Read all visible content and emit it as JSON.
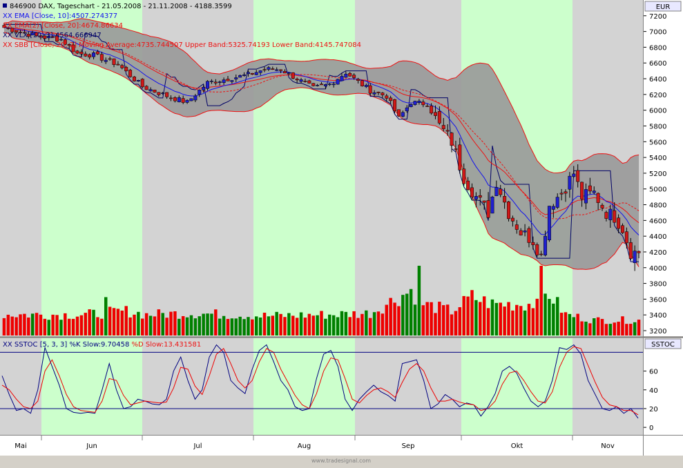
{
  "colors": {
    "background": "#d4d0c8",
    "band_gray": "#d3d3d3",
    "band_green": "#ccffcc",
    "bollinger_fill": "#999999",
    "up_candle": "#1f1fd0",
    "down_candle": "#d01818",
    "ema10": "#1111ee",
    "ema20": "#ee1111",
    "vlx": "#000066",
    "volume_up": "#008000",
    "volume_down": "#ee0000",
    "stoch_k": "#000080",
    "stoch_d": "#ee0000",
    "axis_label_box": "#e8e8ff"
  },
  "header": {
    "title": "846900 DAX, Tageschart - 21.05.2008 - 21.11.2008 - 4188.3599",
    "currency_label": "EUR"
  },
  "legend": {
    "ema10": "XX EMA [Close, 10]:4507.274377",
    "ema20": "XX EMA(2) [Close, 20]:4674.86634",
    "vlx": "XX VLX [10, 3]:4564.666947",
    "bollinger": "XX SBB [Close, 20, 2] Moving Average:4735.744507 Upper Band:5325.74193 Lower Band:4145.747084"
  },
  "stoch_panel": {
    "label": "SSTOC",
    "legend_prefix": "XX SSTOC [5, 3, 3]",
    "legend_k": " %K Slow:9.70458",
    "legend_d": " %D Slow:13.431581"
  },
  "watermark": "www.tradesignal.com",
  "chart_data": [
    {
      "type": "candlestick",
      "title": "846900 DAX, Tageschart - 21.05.2008 - 21.11.2008 - 4188.3599",
      "y_axis_label": "EUR",
      "ylim": [
        3130,
        7400
      ],
      "y_ticks": [
        3200,
        3400,
        3600,
        3800,
        4000,
        4200,
        4400,
        4600,
        4800,
        5000,
        5200,
        5400,
        5600,
        5800,
        6000,
        6200,
        6400,
        6600,
        6800,
        7000,
        7200
      ],
      "x_month_labels": [
        "Mai",
        "Jun",
        "Jul",
        "Aug",
        "Sep",
        "Okt",
        "Nov"
      ],
      "close_waypoints": [
        [
          0,
          7050
        ],
        [
          8,
          6940
        ],
        [
          14,
          6900
        ],
        [
          18,
          6720
        ],
        [
          22,
          6700
        ],
        [
          28,
          6580
        ],
        [
          34,
          6300
        ],
        [
          40,
          6180
        ],
        [
          45,
          6100
        ],
        [
          50,
          6350
        ],
        [
          55,
          6400
        ],
        [
          60,
          6450
        ],
        [
          64,
          6520
        ],
        [
          68,
          6520
        ],
        [
          72,
          6400
        ],
        [
          76,
          6280
        ],
        [
          80,
          6330
        ],
        [
          84,
          6480
        ],
        [
          87,
          6360
        ],
        [
          90,
          6250
        ],
        [
          94,
          6180
        ],
        [
          97,
          5900
        ],
        [
          100,
          6100
        ],
        [
          104,
          6080
        ],
        [
          107,
          5800
        ],
        [
          110,
          5600
        ],
        [
          113,
          5150
        ],
        [
          116,
          4900
        ],
        [
          119,
          4700
        ],
        [
          121,
          5100
        ],
        [
          124,
          4700
        ],
        [
          127,
          4450
        ],
        [
          130,
          4350
        ],
        [
          132,
          4150
        ],
        [
          134,
          4800
        ],
        [
          137,
          4950
        ],
        [
          140,
          5200
        ],
        [
          142,
          4900
        ],
        [
          145,
          4950
        ],
        [
          148,
          4700
        ],
        [
          150,
          4650
        ],
        [
          152,
          4500
        ],
        [
          154,
          4200
        ],
        [
          156,
          4188
        ]
      ],
      "legend": [
        "XX EMA [Close, 10]:4507.274377",
        "XX EMA(2) [Close, 20]:4674.86634",
        "XX VLX [10, 3]:4564.666947",
        "XX SBB [Close, 20, 2] Moving Average:4735.744507 Upper Band:5325.74193 Lower Band:4145.747084"
      ],
      "last_values": {
        "ema10": 4507.274377,
        "ema20": 4674.86634,
        "vlx": 4564.666947,
        "bb_mid": 4735.744507,
        "bb_upper": 5325.74193,
        "bb_lower": 4145.747084
      },
      "volume_waypoints": [
        [
          0,
          0.3
        ],
        [
          20,
          0.3
        ],
        [
          30,
          0.35
        ],
        [
          35,
          0.3
        ],
        [
          45,
          0.32
        ],
        [
          55,
          0.3
        ],
        [
          65,
          0.28
        ],
        [
          80,
          0.3
        ],
        [
          90,
          0.32
        ],
        [
          97,
          0.55
        ],
        [
          100,
          0.65
        ],
        [
          103,
          0.45
        ],
        [
          110,
          0.35
        ],
        [
          115,
          0.55
        ],
        [
          120,
          0.45
        ],
        [
          130,
          0.45
        ],
        [
          132,
          0.95
        ],
        [
          134,
          0.6
        ],
        [
          138,
          0.3
        ],
        [
          145,
          0.22
        ],
        [
          156,
          0.22
        ]
      ],
      "volume_spikes": [
        [
          25,
          0.55
        ],
        [
          102,
          1.0
        ],
        [
          132,
          1.0
        ],
        [
          133,
          0.6
        ]
      ]
    },
    {
      "type": "line",
      "title": "XX SSTOC [5, 3, 3] %K Slow:9.70458 %D Slow:13.431581",
      "ylim": [
        -8,
        95
      ],
      "y_ticks": [
        0,
        20,
        40,
        60
      ],
      "reference_lines": [
        20,
        80
      ],
      "series": [
        {
          "name": "%K Slow",
          "values": [
            55,
            35,
            18,
            20,
            15,
            40,
            85,
            65,
            45,
            20,
            16,
            15,
            16,
            15,
            40,
            68,
            40,
            20,
            22,
            30,
            28,
            25,
            24,
            30,
            60,
            75,
            50,
            30,
            40,
            75,
            88,
            80,
            50,
            42,
            36,
            62,
            82,
            88,
            70,
            50,
            40,
            22,
            18,
            20,
            52,
            78,
            82,
            65,
            30,
            18,
            30,
            38,
            45,
            38,
            34,
            28,
            68,
            70,
            72,
            50,
            20,
            25,
            35,
            30,
            22,
            26,
            24,
            12,
            22,
            36,
            60,
            65,
            58,
            42,
            28,
            22,
            28,
            50,
            85,
            83,
            88,
            78,
            50,
            35,
            20,
            18,
            22,
            15,
            20,
            9.7
          ]
        },
        {
          "name": "%D Slow",
          "values": [
            45,
            40,
            30,
            22,
            20,
            28,
            60,
            72,
            55,
            35,
            22,
            18,
            17,
            16,
            28,
            52,
            50,
            34,
            24,
            26,
            28,
            27,
            26,
            27,
            42,
            64,
            62,
            44,
            35,
            55,
            78,
            84,
            68,
            50,
            42,
            50,
            70,
            84,
            80,
            62,
            48,
            34,
            24,
            20,
            36,
            60,
            74,
            72,
            52,
            30,
            26,
            34,
            40,
            42,
            38,
            32,
            48,
            62,
            68,
            60,
            42,
            28,
            28,
            30,
            27,
            25,
            24,
            18,
            20,
            28,
            46,
            58,
            60,
            50,
            38,
            28,
            26,
            38,
            64,
            80,
            86,
            84,
            66,
            48,
            32,
            24,
            22,
            18,
            18,
            13.4
          ]
        }
      ]
    }
  ]
}
